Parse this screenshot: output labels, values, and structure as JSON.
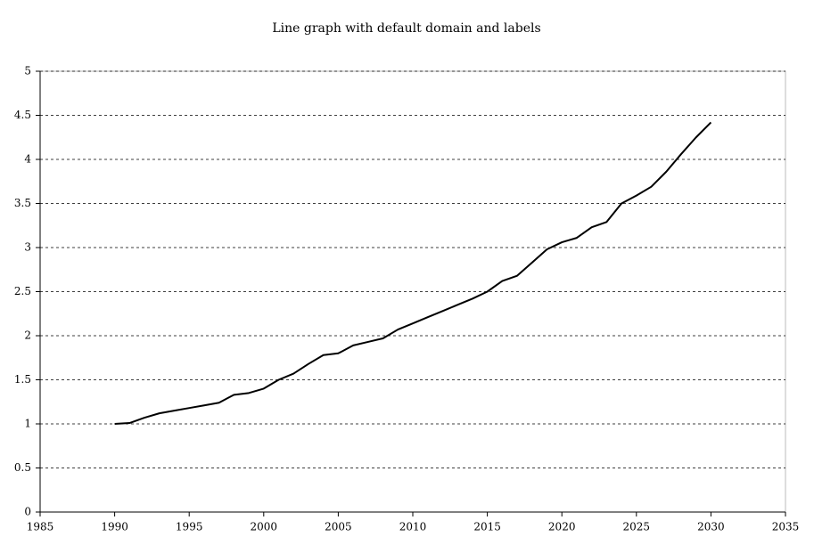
{
  "chart_data": {
    "type": "line",
    "title": "Line graph with default domain and labels",
    "x": [
      1990,
      1991,
      1992,
      1993,
      1994,
      1995,
      1996,
      1997,
      1998,
      1999,
      2000,
      2001,
      2002,
      2003,
      2004,
      2005,
      2006,
      2007,
      2008,
      2009,
      2010,
      2011,
      2012,
      2013,
      2014,
      2015,
      2016,
      2017,
      2018,
      2019,
      2020,
      2021,
      2022,
      2023,
      2024,
      2025,
      2026,
      2027,
      2028,
      2029,
      2030
    ],
    "values": [
      1.0,
      1.01,
      1.07,
      1.12,
      1.15,
      1.18,
      1.21,
      1.24,
      1.33,
      1.35,
      1.4,
      1.5,
      1.57,
      1.68,
      1.78,
      1.8,
      1.89,
      1.93,
      1.97,
      2.07,
      2.14,
      2.21,
      2.28,
      2.35,
      2.42,
      2.5,
      2.62,
      2.68,
      2.83,
      2.98,
      3.06,
      3.11,
      3.23,
      3.29,
      3.5,
      3.59,
      3.69,
      3.86,
      4.06,
      4.25,
      4.42
    ],
    "color": "#000000",
    "xlim": [
      1985,
      2035
    ],
    "xticks": [
      1985,
      1990,
      1995,
      2000,
      2005,
      2010,
      2015,
      2020,
      2025,
      2030,
      2035
    ],
    "ylim": [
      0,
      5
    ],
    "yticks": [
      0,
      0.5,
      1,
      1.5,
      2,
      2.5,
      3,
      3.5,
      4,
      4.5,
      5
    ],
    "grid": true
  }
}
